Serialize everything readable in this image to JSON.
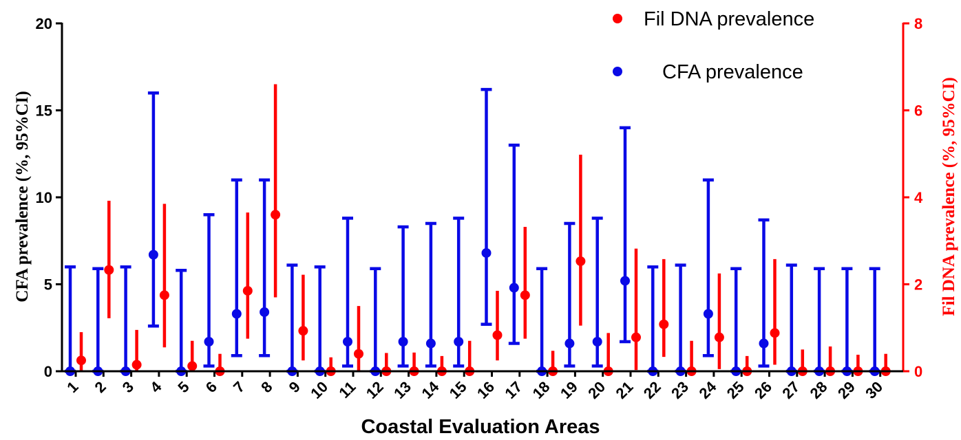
{
  "chart_data": {
    "type": "scatter",
    "xlabel": "Coastal Evaluation Areas",
    "ylabel_left": "CFA prevalence (%, 95%CI)",
    "ylabel_right": "Fil DNA prevalence (%, 95%CI)",
    "categories": [
      "1",
      "2",
      "3",
      "4",
      "5",
      "6",
      "7",
      "8",
      "9",
      "10",
      "11",
      "12",
      "13",
      "14",
      "15",
      "16",
      "17",
      "18",
      "19",
      "20",
      "21",
      "22",
      "23",
      "24",
      "25",
      "26",
      "27",
      "28",
      "29",
      "30"
    ],
    "y_left": {
      "min": 0,
      "max": 20,
      "ticks": [
        "0",
        "5",
        "10",
        "15",
        "20"
      ]
    },
    "y_right": {
      "min": 0,
      "max": 8,
      "ticks": [
        "0",
        "2",
        "4",
        "6",
        "8"
      ]
    },
    "colors": {
      "cfa": "#0a0ae6",
      "fil": "#ff0000",
      "left_axis": "#000000",
      "right_axis": "#ff0000"
    },
    "legend_position": "top-right",
    "series": [
      {
        "name": "CFA prevalence",
        "axis": "left",
        "values": [
          0,
          0,
          0,
          6.7,
          0,
          1.7,
          3.3,
          3.4,
          0,
          0,
          1.7,
          0,
          1.7,
          1.6,
          1.7,
          6.8,
          4.8,
          0,
          1.6,
          1.7,
          5.2,
          0,
          0,
          3.3,
          0,
          1.6,
          0,
          0,
          0,
          0
        ],
        "ci_lower": [
          0,
          0,
          0,
          2.6,
          0,
          0.3,
          0.9,
          0.9,
          0,
          0,
          0.3,
          0,
          0.3,
          0.3,
          0.3,
          2.7,
          1.6,
          0,
          0.3,
          0.3,
          1.7,
          0,
          0,
          0.9,
          0,
          0.3,
          0,
          0,
          0,
          0
        ],
        "ci_upper": [
          6,
          5.9,
          6,
          16,
          5.8,
          9,
          11,
          11,
          6.1,
          6,
          8.8,
          5.9,
          8.3,
          8.5,
          8.8,
          16.2,
          13,
          5.9,
          8.5,
          8.8,
          14,
          6,
          6.1,
          11,
          5.9,
          8.7,
          6.1,
          5.9,
          5.9,
          5.9
        ]
      },
      {
        "name": "Fil DNA prevalence",
        "axis": "right",
        "values": [
          0.25,
          2.33,
          0.15,
          1.75,
          0.12,
          0,
          1.85,
          3.6,
          0.93,
          0,
          0.4,
          0,
          0,
          0,
          0,
          0.83,
          1.75,
          0,
          2.53,
          0,
          0.78,
          1.08,
          0,
          0.78,
          0,
          0.88,
          0,
          0,
          0,
          0
        ],
        "ci_lower": [
          0,
          1.22,
          0,
          0.55,
          0,
          0,
          0.75,
          1.7,
          0.25,
          0,
          0.02,
          0,
          0,
          0,
          0,
          0.25,
          0.75,
          0,
          1.05,
          0,
          0.03,
          0.33,
          0,
          0.05,
          0,
          0.15,
          0,
          0,
          0,
          0
        ],
        "ci_upper": [
          0.9,
          3.92,
          0.95,
          3.85,
          0.7,
          0.4,
          3.65,
          6.6,
          2.22,
          0.32,
          1.5,
          0.42,
          0.43,
          0.35,
          0.7,
          1.85,
          3.32,
          0.47,
          4.98,
          0.88,
          2.82,
          2.58,
          0.7,
          2.25,
          0.35,
          2.58,
          0.5,
          0.57,
          0.38,
          0.4
        ]
      }
    ]
  }
}
